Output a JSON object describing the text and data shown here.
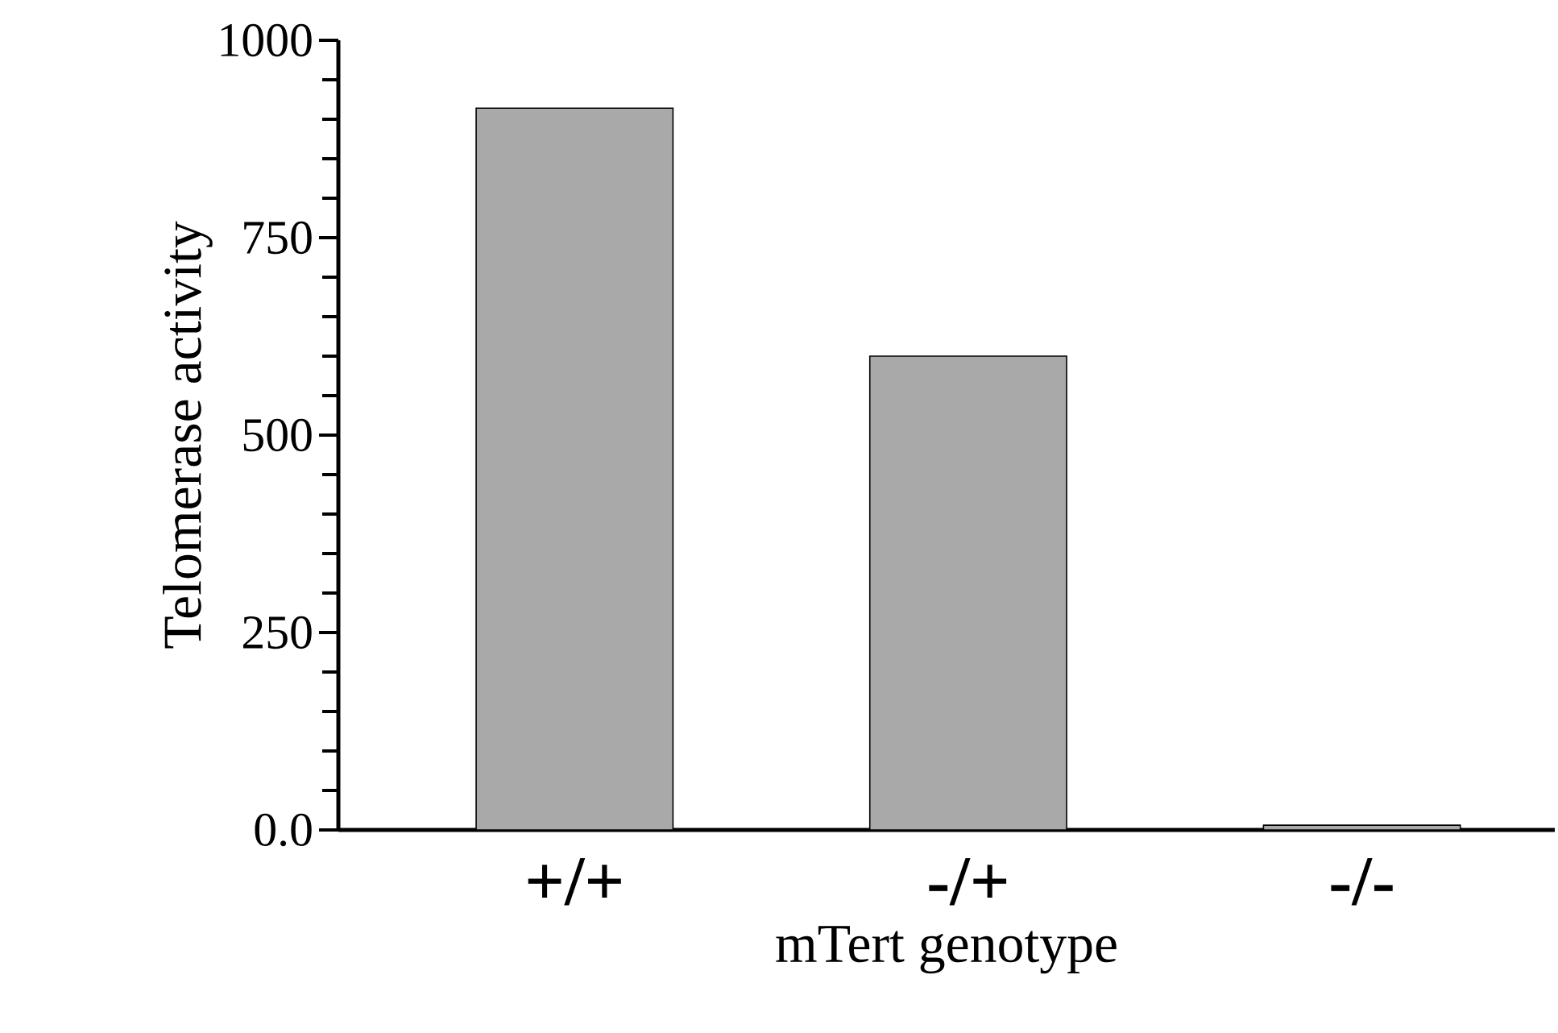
{
  "chart_data": {
    "type": "bar",
    "xlabel": "mTert genotype",
    "ylabel": "Telomerase activity",
    "categories": [
      "+/+",
      "-/+",
      "-/-"
    ],
    "values": [
      914,
      600,
      6
    ],
    "color": "#a9a9a9",
    "ylim": [
      0,
      1000
    ],
    "yticks": [
      {
        "value": 0,
        "label": "0.0"
      },
      250,
      500,
      750,
      1000
    ]
  }
}
